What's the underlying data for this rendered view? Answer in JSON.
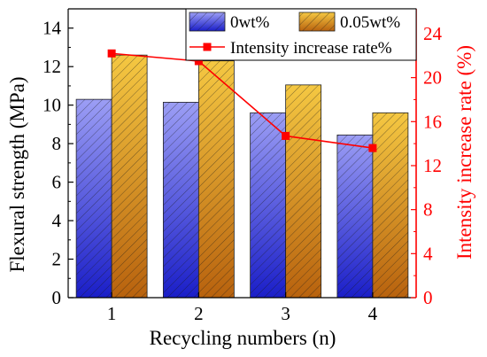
{
  "chart_data": {
    "type": "bar",
    "categories": [
      "1",
      "2",
      "3",
      "4"
    ],
    "xlabel": "Recycling numbers (n)",
    "ylabel": "Flexural strength (MPa)",
    "y2label": "Intensity increase rate (%)",
    "ylim": [
      0,
      15
    ],
    "y2lim": [
      0,
      26.25
    ],
    "yticks": [
      "0",
      "2",
      "4",
      "6",
      "8",
      "10",
      "12",
      "14"
    ],
    "y2ticks": [
      "0",
      "4",
      "8",
      "12",
      "16",
      "20",
      "24"
    ],
    "series": [
      {
        "name": "0wt%",
        "kind": "bar",
        "axis": "left",
        "values": [
          10.3,
          10.15,
          9.6,
          8.45
        ],
        "color_top": "#9c9ef5",
        "color_bottom": "#1a1ec8"
      },
      {
        "name": "0.05wt%",
        "kind": "bar",
        "axis": "left",
        "values": [
          12.6,
          12.3,
          11.05,
          9.6
        ],
        "color_top": "#f5c842",
        "color_bottom": "#b8620e"
      },
      {
        "name": "Intensity increase rate%",
        "kind": "line",
        "axis": "right",
        "values": [
          22.2,
          21.5,
          14.7,
          13.6
        ],
        "color": "#ff0000"
      }
    ],
    "right_axis_color": "#ff0000",
    "legend_position": "top-right",
    "grid": false
  }
}
